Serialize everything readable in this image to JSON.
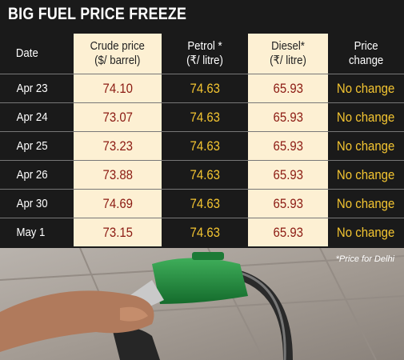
{
  "title": "BIG FUEL PRICE FREEZE",
  "table": {
    "header": [
      "Date",
      "Crude price\n($/ barrel)",
      "Petrol *\n(₹/ litre)",
      "Diesel*\n(₹/ litre)",
      "Price\nchange"
    ],
    "rows": [
      [
        "Apr 23",
        "74.10",
        "74.63",
        "65.93",
        "No change"
      ],
      [
        "Apr 24",
        "73.07",
        "74.63",
        "65.93",
        "No change"
      ],
      [
        "Apr 25",
        "73.23",
        "74.63",
        "65.93",
        "No change"
      ],
      [
        "Apr 26",
        "73.88",
        "74.63",
        "65.93",
        "No change"
      ],
      [
        "Apr 30",
        "74.69",
        "74.63",
        "65.93",
        "No change"
      ],
      [
        "May 1",
        "73.15",
        "74.63",
        "65.93",
        "No change"
      ]
    ]
  },
  "footnote": "*Price for Delhi"
}
